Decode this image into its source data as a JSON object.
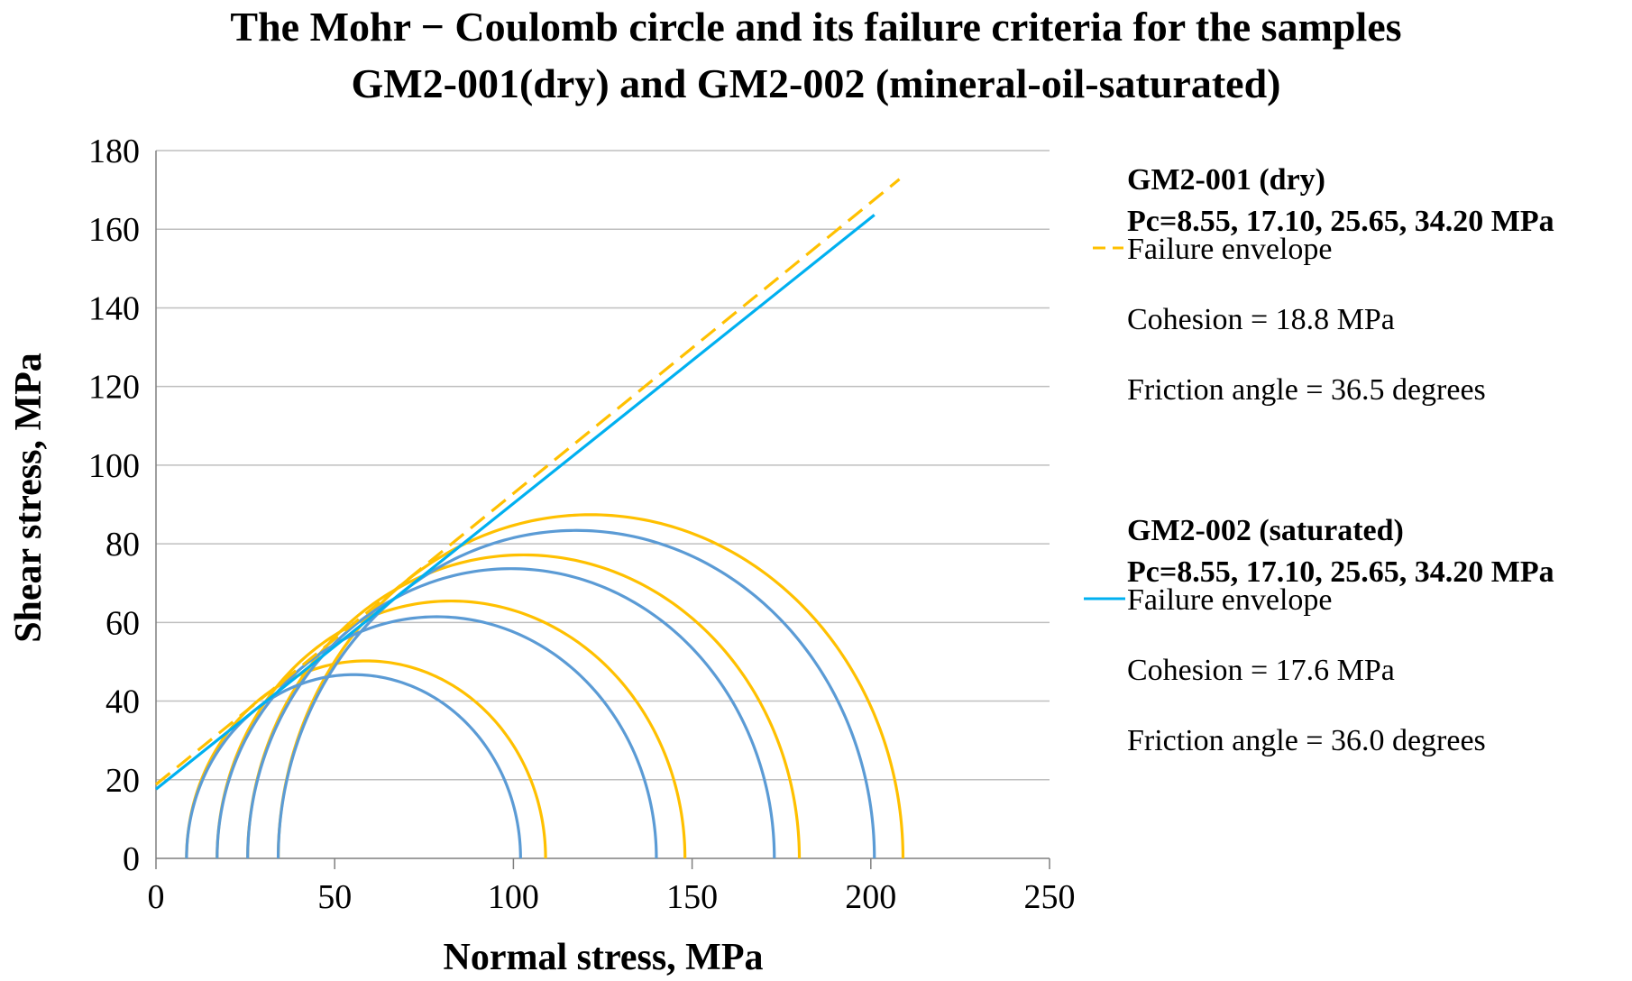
{
  "chart_data": {
    "type": "line",
    "title": [
      "The Mohr − Coulomb circle and its failure criteria for the samples",
      "GM2-001(dry) and GM2-002 (mineral-oil-saturated)"
    ],
    "xlabel": "Normal stress, MPa",
    "ylabel": "Shear stress, MPa",
    "xlim": [
      0,
      250
    ],
    "ylim": [
      0,
      180
    ],
    "x_ticks": [
      "0",
      "50",
      "100",
      "150",
      "200",
      "250"
    ],
    "y_ticks": [
      "0",
      "20",
      "40",
      "60",
      "80",
      "100",
      "120",
      "140",
      "160",
      "180"
    ],
    "grid": "horizontal",
    "colors": {
      "dry": "#FFC000",
      "saturated_circles": "#5B9BD5",
      "saturated_envelope": "#00B0F0",
      "grid": "#bfbfbf",
      "axis": "#7f7f7f"
    },
    "series": [
      {
        "name": "GM2-001 (dry)",
        "confining_pressures": "Pc=8.55, 17.10, 25.65, 34.20 MPa",
        "envelope_label": "Failure envelope",
        "cohesion_text": "Cohesion = 18.8 MPa",
        "friction_text": "Friction angle = 36.5 degrees",
        "cohesion": 18.8,
        "friction_angle": 36.5,
        "envelope_x_range": [
          0,
          208
        ],
        "circles": [
          {
            "sigma3": 8.55,
            "sigma1": 109
          },
          {
            "sigma3": 17.1,
            "sigma1": 148
          },
          {
            "sigma3": 25.65,
            "sigma1": 180
          },
          {
            "sigma3": 34.2,
            "sigma1": 209
          }
        ]
      },
      {
        "name": "GM2-002 (saturated)",
        "confining_pressures": "Pc=8.55, 17.10, 25.65, 34.20 MPa",
        "envelope_label": "Failure envelope",
        "cohesion_text": "Cohesion = 17.6 MPa",
        "friction_text": "Friction angle = 36.0 degrees",
        "cohesion": 17.6,
        "friction_angle": 36.0,
        "envelope_x_range": [
          0,
          201
        ],
        "circles": [
          {
            "sigma3": 8.55,
            "sigma1": 102
          },
          {
            "sigma3": 17.1,
            "sigma1": 140
          },
          {
            "sigma3": 25.65,
            "sigma1": 173
          },
          {
            "sigma3": 34.2,
            "sigma1": 201
          }
        ]
      }
    ]
  }
}
